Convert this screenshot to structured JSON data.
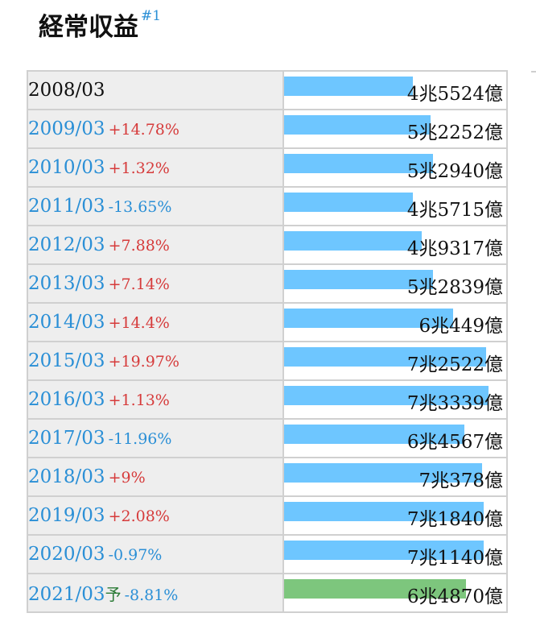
{
  "title": "経常収益",
  "title_note": "#1",
  "colors": {
    "bar": "#6ec6ff",
    "bar_forecast": "#7dc67d",
    "up": "#d63b3b",
    "down": "#2a8fd6"
  },
  "rows": [
    {
      "year": "2008/03",
      "forecast_mark": "",
      "change": "",
      "direction": "none",
      "amount": "4兆5524億",
      "ratio": 0.58,
      "linked": false,
      "forecast": false
    },
    {
      "year": "2009/03",
      "forecast_mark": "",
      "change": "+14.78%",
      "direction": "up",
      "amount": "5兆2252億",
      "ratio": 0.66,
      "linked": true,
      "forecast": false
    },
    {
      "year": "2010/03",
      "forecast_mark": "",
      "change": "+1.32%",
      "direction": "up",
      "amount": "5兆2940億",
      "ratio": 0.67,
      "linked": true,
      "forecast": false
    },
    {
      "year": "2011/03",
      "forecast_mark": "",
      "change": "-13.65%",
      "direction": "down",
      "amount": "4兆5715億",
      "ratio": 0.58,
      "linked": true,
      "forecast": false
    },
    {
      "year": "2012/03",
      "forecast_mark": "",
      "change": "+7.88%",
      "direction": "up",
      "amount": "4兆9317億",
      "ratio": 0.62,
      "linked": true,
      "forecast": false
    },
    {
      "year": "2013/03",
      "forecast_mark": "",
      "change": "+7.14%",
      "direction": "up",
      "amount": "5兆2839億",
      "ratio": 0.67,
      "linked": true,
      "forecast": false
    },
    {
      "year": "2014/03",
      "forecast_mark": "",
      "change": "+14.4%",
      "direction": "up",
      "amount": "6兆449億",
      "ratio": 0.76,
      "linked": true,
      "forecast": false
    },
    {
      "year": "2015/03",
      "forecast_mark": "",
      "change": "+19.97%",
      "direction": "up",
      "amount": "7兆2522億",
      "ratio": 0.91,
      "linked": true,
      "forecast": false
    },
    {
      "year": "2016/03",
      "forecast_mark": "",
      "change": "+1.13%",
      "direction": "up",
      "amount": "7兆3339億",
      "ratio": 0.92,
      "linked": true,
      "forecast": false
    },
    {
      "year": "2017/03",
      "forecast_mark": "",
      "change": "-11.96%",
      "direction": "down",
      "amount": "6兆4567億",
      "ratio": 0.81,
      "linked": true,
      "forecast": false
    },
    {
      "year": "2018/03",
      "forecast_mark": "",
      "change": "+9%",
      "direction": "up",
      "amount": "7兆378億",
      "ratio": 0.89,
      "linked": true,
      "forecast": false
    },
    {
      "year": "2019/03",
      "forecast_mark": "",
      "change": "+2.08%",
      "direction": "up",
      "amount": "7兆1840億",
      "ratio": 0.9,
      "linked": true,
      "forecast": false
    },
    {
      "year": "2020/03",
      "forecast_mark": "",
      "change": "-0.97%",
      "direction": "down",
      "amount": "7兆1140億",
      "ratio": 0.9,
      "linked": true,
      "forecast": false
    },
    {
      "year": "2021/03",
      "forecast_mark": "予",
      "change": "-8.81%",
      "direction": "down",
      "amount": "6兆4870億",
      "ratio": 0.82,
      "linked": true,
      "forecast": true
    }
  ]
}
